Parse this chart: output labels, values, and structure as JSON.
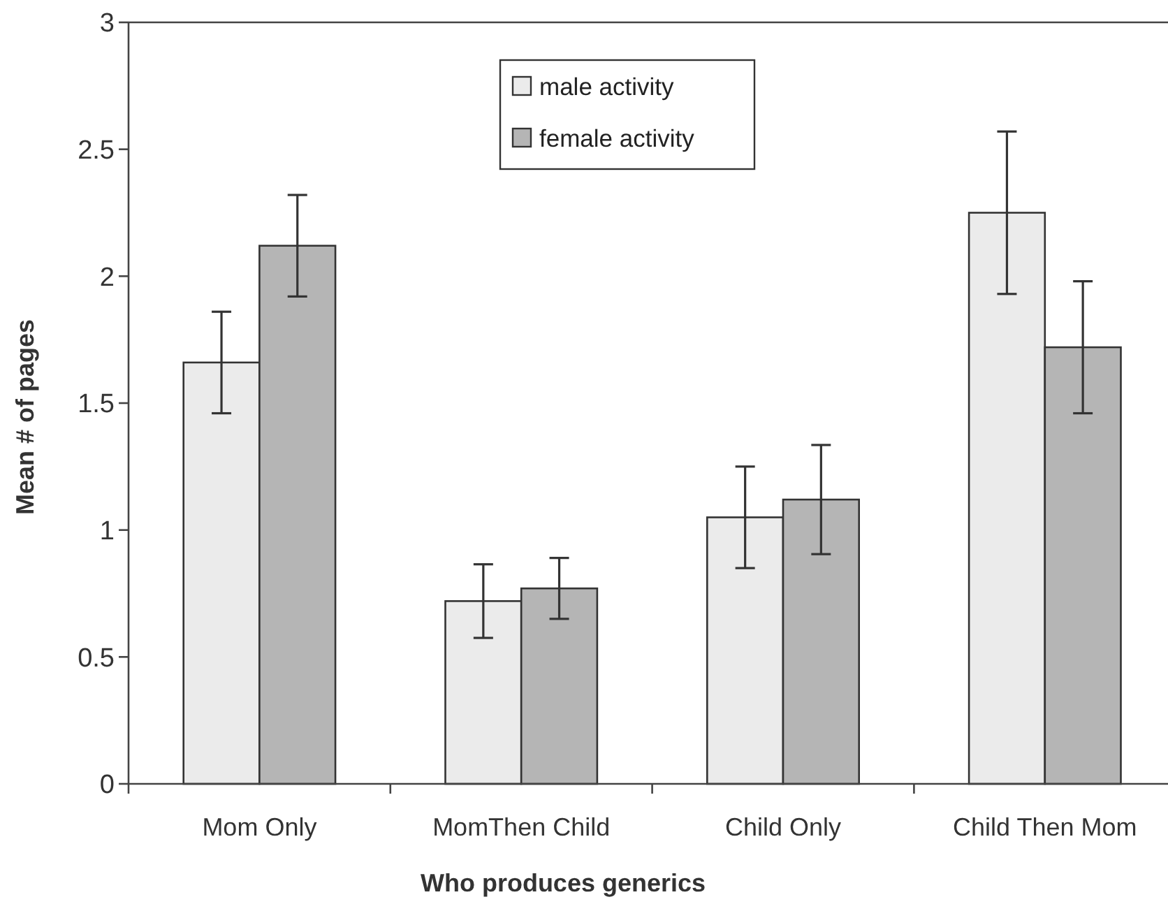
{
  "chart_data": {
    "type": "bar",
    "xlabel": "Who produces generics",
    "ylabel": "Mean # of pages",
    "categories": [
      "Mom Only",
      "MomThen Child",
      "Child Only",
      "Child Then Mom"
    ],
    "series": [
      {
        "name": "male activity",
        "color": "#ebebeb",
        "values": [
          1.66,
          0.72,
          1.05,
          2.25
        ],
        "errors": [
          0.2,
          0.145,
          0.2,
          0.32
        ]
      },
      {
        "name": "female activity",
        "color": "#b5b5b5",
        "values": [
          2.12,
          0.77,
          1.12,
          1.72
        ],
        "errors": [
          0.2,
          0.12,
          0.215,
          0.26
        ]
      }
    ],
    "ylim": [
      0,
      3
    ],
    "yticks": [
      0,
      0.5,
      1,
      1.5,
      2,
      2.5,
      3
    ],
    "grid": false,
    "legend": "top"
  }
}
